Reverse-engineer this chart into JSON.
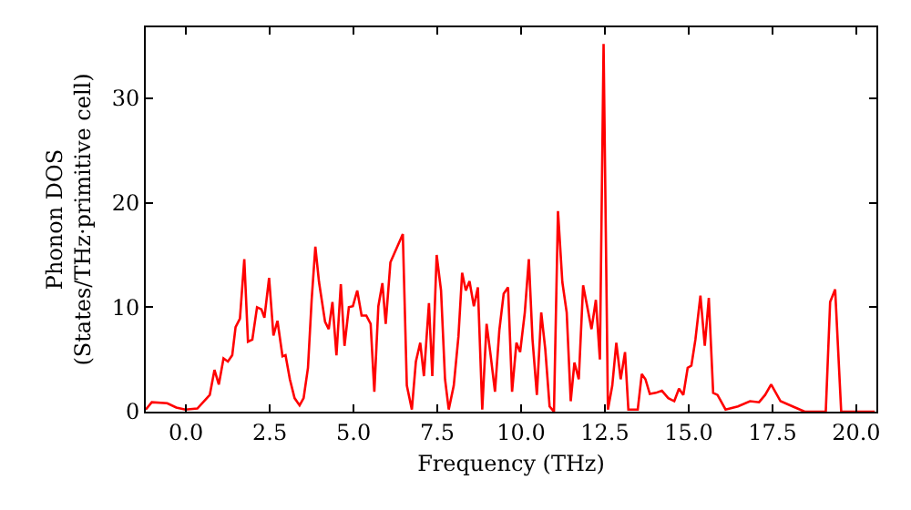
{
  "chart_data": {
    "type": "line",
    "xlabel": "Frequency (THz)",
    "ylabel": "Phonon DOS\n(States/THz·primitive cell)",
    "x": [
      -1.2,
      -1.02,
      -0.56,
      -0.29,
      -0.02,
      0.34,
      0.71,
      0.85,
      0.98,
      1.12,
      1.25,
      1.38,
      1.48,
      1.61,
      1.74,
      1.85,
      1.98,
      2.12,
      2.25,
      2.34,
      2.48,
      2.61,
      2.73,
      2.88,
      2.97,
      3.1,
      3.24,
      3.39,
      3.51,
      3.64,
      3.75,
      3.86,
      3.97,
      4.15,
      4.26,
      4.37,
      4.49,
      4.62,
      4.73,
      4.86,
      4.98,
      5.11,
      5.24,
      5.38,
      5.51,
      5.62,
      5.74,
      5.86,
      5.96,
      6.1,
      6.47,
      6.59,
      6.74,
      6.86,
      6.99,
      7.1,
      7.25,
      7.35,
      7.48,
      7.61,
      7.73,
      7.84,
      7.99,
      8.13,
      8.24,
      8.35,
      8.46,
      8.59,
      8.71,
      8.84,
      8.97,
      9.09,
      9.22,
      9.35,
      9.48,
      9.61,
      9.73,
      9.86,
      9.97,
      10.11,
      10.23,
      10.34,
      10.47,
      10.6,
      10.72,
      10.85,
      10.98,
      11.1,
      11.23,
      11.36,
      11.48,
      11.59,
      11.72,
      11.85,
      11.97,
      12.1,
      12.23,
      12.35,
      12.46,
      12.59,
      12.72,
      12.84,
      12.97,
      13.1,
      13.2,
      13.48,
      13.6,
      13.71,
      13.84,
      14.02,
      14.2,
      14.39,
      14.57,
      14.71,
      14.84,
      14.97,
      15.08,
      15.2,
      15.35,
      15.48,
      15.6,
      15.73,
      15.86,
      16.1,
      16.47,
      16.83,
      17.1,
      17.28,
      17.46,
      17.74,
      18.1,
      18.46,
      19.09,
      19.22,
      19.37,
      19.55,
      20.55
    ],
    "series": [
      {
        "color": "#ff0000",
        "values": [
          0.2,
          0.9,
          0.8,
          0.4,
          0.2,
          0.3,
          1.6,
          4.0,
          2.6,
          5.1,
          4.8,
          5.4,
          8.1,
          8.9,
          14.6,
          6.7,
          6.9,
          10.0,
          9.8,
          9.0,
          12.8,
          7.3,
          8.7,
          5.3,
          5.4,
          3.1,
          1.3,
          0.6,
          1.3,
          4.2,
          10.7,
          15.8,
          12.4,
          8.6,
          7.9,
          10.5,
          5.4,
          12.2,
          6.3,
          10.0,
          10.1,
          11.6,
          9.2,
          9.2,
          8.4,
          1.9,
          10.1,
          12.3,
          8.4,
          14.3,
          17.0,
          2.5,
          0.2,
          4.8,
          6.6,
          3.4,
          10.4,
          3.4,
          15.0,
          11.6,
          3.1,
          0.2,
          2.5,
          7.2,
          13.3,
          11.6,
          12.5,
          10.1,
          11.9,
          0.2,
          8.4,
          5.4,
          1.9,
          7.8,
          11.3,
          11.9,
          1.9,
          6.6,
          5.7,
          9.5,
          14.6,
          6.9,
          1.6,
          9.5,
          6.0,
          0.5,
          0.0,
          19.2,
          12.4,
          9.5,
          1.0,
          4.7,
          3.1,
          12.1,
          10.1,
          7.9,
          10.7,
          5.0,
          35.2,
          0.2,
          2.5,
          6.6,
          3.1,
          5.7,
          0.2,
          0.2,
          3.6,
          3.1,
          1.7,
          1.8,
          2.0,
          1.3,
          1.0,
          2.2,
          1.6,
          4.2,
          4.4,
          6.9,
          11.1,
          6.3,
          10.9,
          1.8,
          1.6,
          0.2,
          0.5,
          1.0,
          0.9,
          1.6,
          2.6,
          1.0,
          0.5,
          0.0,
          0.0,
          10.5,
          11.7,
          0.0,
          0.0
        ]
      }
    ],
    "xlim": [
      -1.2,
      20.6
    ],
    "ylim": [
      0,
      36.8
    ],
    "xticks": [
      {
        "value": 0,
        "label": "0.0"
      },
      {
        "value": 2.5,
        "label": "2.5"
      },
      {
        "value": 5,
        "label": "5.0"
      },
      {
        "value": 7.5,
        "label": "7.5"
      },
      {
        "value": 10,
        "label": "10.0"
      },
      {
        "value": 12.5,
        "label": "12.5"
      },
      {
        "value": 15,
        "label": "15.0"
      },
      {
        "value": 17.5,
        "label": "17.5"
      },
      {
        "value": 20,
        "label": "20.0"
      }
    ],
    "yticks": [
      0,
      10,
      20,
      30
    ],
    "line_style": "solid",
    "marker": "none"
  }
}
